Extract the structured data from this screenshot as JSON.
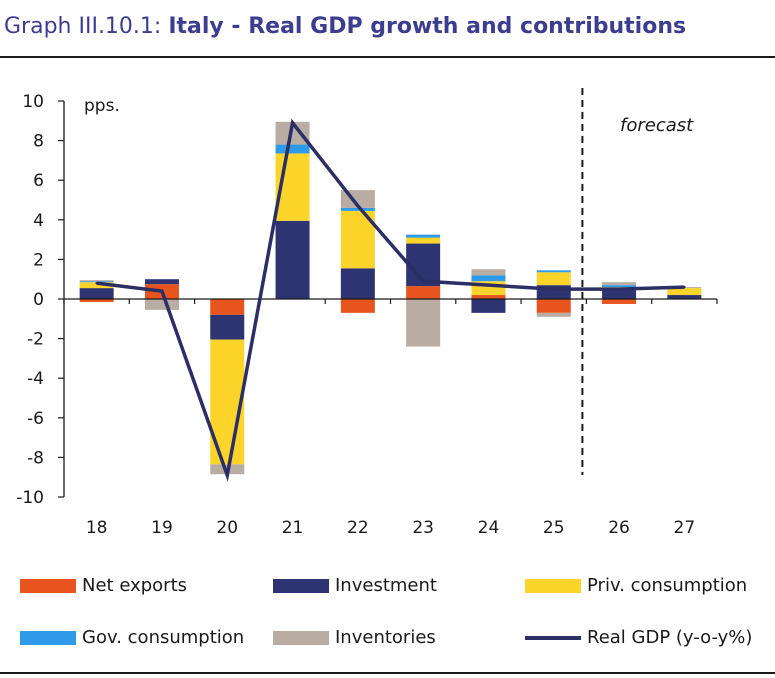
{
  "title": {
    "prefix": "Graph III.10.1:",
    "main": "Italy - Real GDP growth and contributions"
  },
  "chart_data": {
    "type": "bar",
    "stacked": true,
    "unit_label": "pps.",
    "annotation": "forecast",
    "forecast_start": "26",
    "categories": [
      "18",
      "19",
      "20",
      "21",
      "22",
      "23",
      "24",
      "25",
      "26",
      "27"
    ],
    "ylim": [
      -10,
      10
    ],
    "yticks": [
      "10",
      "8",
      "6",
      "4",
      "2",
      "0",
      "-2",
      "-4",
      "-6",
      "-8",
      "-10"
    ],
    "grid": false,
    "legend_position": "bottom",
    "series": [
      {
        "name": "Net exports",
        "color": "#e8541e",
        "values": [
          -0.15,
          0.75,
          -0.8,
          0,
          -0.7,
          0.65,
          0.2,
          -0.7,
          -0.25,
          0
        ]
      },
      {
        "name": "Investment",
        "color": "#2e3372",
        "values": [
          0.55,
          0.25,
          -1.25,
          3.95,
          1.55,
          2.15,
          -0.7,
          0.7,
          0.45,
          0.2
        ]
      },
      {
        "name": "Priv. consumption",
        "color": "#fdd52a",
        "values": [
          0.3,
          0,
          -6.3,
          3.4,
          2.9,
          0.3,
          0.7,
          0.65,
          0.15,
          0.35
        ]
      },
      {
        "name": "Gov. consumption",
        "color": "#2f9be8",
        "values": [
          0.05,
          0,
          0,
          0.45,
          0.15,
          0.15,
          0.3,
          0.1,
          0.1,
          0
        ]
      },
      {
        "name": "Inventories",
        "color": "#b9ada3",
        "values": [
          0.05,
          -0.55,
          -0.5,
          1.15,
          0.9,
          -2.4,
          0.3,
          -0.2,
          0.15,
          0.05
        ]
      }
    ],
    "line": {
      "name": "Real GDP (y-o-y%)",
      "color": "#2b2f66",
      "values": [
        0.8,
        0.4,
        -8.9,
        8.9,
        4.7,
        0.9,
        0.7,
        0.5,
        0.5,
        0.6
      ]
    }
  }
}
